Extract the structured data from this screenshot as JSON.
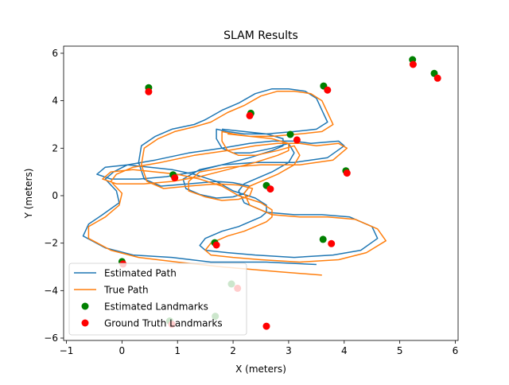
{
  "chart_data": {
    "type": "line",
    "title": "SLAM Results",
    "xlabel": "X (meters)",
    "ylabel": "Y (meters)",
    "xlim": [
      -1.05,
      6.05
    ],
    "ylim": [
      -6.1,
      6.3
    ],
    "xticks": [
      -1,
      0,
      1,
      2,
      3,
      4,
      5,
      6
    ],
    "yticks": [
      -6,
      -4,
      -2,
      0,
      2,
      4,
      6
    ],
    "grid": false,
    "legend_position": "lower-left",
    "series": [
      {
        "name": "Estimated Path",
        "kind": "line",
        "color": "#1f77b4",
        "x": [
          3.5,
          2.6,
          1.6,
          0.9,
          0.2,
          -0.3,
          -0.7,
          -0.6,
          -0.35,
          -0.05,
          -0.1,
          -0.3,
          -0.15,
          0.1,
          0.6,
          1.2,
          1.8,
          2.3,
          2.7,
          3.1,
          3.4,
          3.9,
          4.0,
          3.7,
          3.1,
          2.4,
          1.8,
          1.4,
          1.1,
          1.15,
          1.4,
          1.7,
          2.0,
          2.2,
          2.3,
          2.0,
          1.7,
          1.2,
          0.7,
          0.4,
          0.3,
          0.35,
          0.6,
          0.9,
          1.3,
          1.5,
          1.8,
          2.1,
          2.4,
          2.7,
          3.0,
          3.3,
          3.5,
          3.6,
          3.7,
          3.5,
          3.1,
          2.6,
          2.2,
          1.9,
          1.7,
          1.7,
          1.8,
          2.0,
          2.3,
          2.7,
          3.0,
          3.1,
          3.0,
          2.7,
          2.4,
          2.2,
          2.1,
          2.2,
          2.6,
          3.1,
          3.6,
          4.1,
          4.5,
          4.6,
          4.3,
          3.8,
          3.1,
          2.4,
          1.9,
          1.5,
          1.4,
          1.5,
          1.8,
          2.1,
          2.3,
          2.5,
          2.6,
          2.6,
          2.4,
          2.0,
          1.7,
          1.3,
          0.9,
          0.5,
          0.1,
          -0.3,
          -0.45,
          -0.2,
          0.3,
          0.8,
          1.3,
          1.8,
          2.3,
          2.7,
          2.9,
          2.9,
          2.6,
          2.2,
          1.8
        ],
        "y": [
          -2.9,
          -2.8,
          -2.8,
          -2.6,
          -2.5,
          -2.2,
          -1.7,
          -1.2,
          -0.8,
          -0.3,
          0.2,
          0.7,
          1.0,
          1.3,
          1.5,
          1.8,
          2.0,
          2.2,
          2.3,
          2.3,
          2.2,
          2.3,
          2.1,
          1.6,
          1.4,
          1.4,
          1.3,
          1.1,
          0.7,
          0.3,
          0.05,
          -0.1,
          -0.05,
          0.1,
          0.4,
          0.55,
          0.6,
          0.5,
          0.4,
          0.7,
          1.4,
          2.1,
          2.5,
          2.8,
          3.0,
          3.2,
          3.6,
          3.9,
          4.3,
          4.5,
          4.5,
          4.4,
          4.1,
          3.6,
          3.1,
          2.8,
          2.7,
          2.6,
          2.6,
          2.7,
          2.8,
          2.4,
          2.0,
          1.8,
          1.8,
          2.0,
          2.2,
          1.8,
          1.4,
          1.0,
          0.7,
          0.5,
          0.2,
          -0.3,
          -0.7,
          -0.8,
          -0.8,
          -0.9,
          -1.3,
          -1.8,
          -2.3,
          -2.5,
          -2.6,
          -2.5,
          -2.4,
          -2.3,
          -2.1,
          -1.8,
          -1.5,
          -1.3,
          -1.1,
          -0.9,
          -0.7,
          -0.4,
          -0.1,
          0.2,
          0.6,
          0.9,
          1.1,
          1.2,
          1.3,
          1.2,
          0.9,
          0.7,
          0.7,
          0.8,
          1.0,
          1.3,
          1.6,
          1.9,
          2.1,
          2.4,
          2.6,
          2.7,
          2.8
        ]
      },
      {
        "name": "True Path",
        "kind": "line",
        "color": "#ff7f0e",
        "x": [
          3.6,
          2.8,
          1.8,
          1.0,
          0.3,
          -0.2,
          -0.6,
          -0.6,
          -0.3,
          -0.05,
          0.0,
          -0.2,
          -0.1,
          0.2,
          0.7,
          1.3,
          1.9,
          2.4,
          2.8,
          3.2,
          3.5,
          3.9,
          4.05,
          3.8,
          3.2,
          2.5,
          1.9,
          1.4,
          1.2,
          1.2,
          1.5,
          1.8,
          2.1,
          2.3,
          2.35,
          2.1,
          1.7,
          1.2,
          0.75,
          0.45,
          0.35,
          0.4,
          0.65,
          0.95,
          1.3,
          1.6,
          1.9,
          2.2,
          2.5,
          2.8,
          3.1,
          3.4,
          3.6,
          3.7,
          3.8,
          3.6,
          3.2,
          2.7,
          2.3,
          2.0,
          1.8,
          1.8,
          1.9,
          2.1,
          2.4,
          2.8,
          3.1,
          3.2,
          3.1,
          2.8,
          2.5,
          2.3,
          2.2,
          2.3,
          2.7,
          3.2,
          3.7,
          4.2,
          4.6,
          4.75,
          4.4,
          3.9,
          3.2,
          2.5,
          2.0,
          1.6,
          1.5,
          1.6,
          1.9,
          2.2,
          2.4,
          2.6,
          2.7,
          2.7,
          2.5,
          2.1,
          1.8,
          1.4,
          1.0,
          0.6,
          0.2,
          -0.2,
          -0.35,
          -0.1,
          0.4,
          0.9,
          1.4,
          1.9,
          2.4,
          2.8,
          3.0,
          3.0,
          2.7,
          2.3,
          1.9
        ],
        "y": [
          -3.35,
          -3.2,
          -3.0,
          -2.8,
          -2.6,
          -2.3,
          -1.8,
          -1.3,
          -0.9,
          -0.4,
          0.1,
          0.6,
          0.9,
          1.2,
          1.4,
          1.7,
          1.9,
          2.1,
          2.2,
          2.2,
          2.1,
          2.2,
          2.0,
          1.5,
          1.3,
          1.3,
          1.2,
          1.0,
          0.6,
          0.2,
          -0.05,
          -0.2,
          -0.15,
          0.0,
          0.3,
          0.45,
          0.5,
          0.4,
          0.3,
          0.6,
          1.3,
          2.0,
          2.4,
          2.7,
          2.9,
          3.1,
          3.5,
          3.8,
          4.2,
          4.4,
          4.4,
          4.3,
          4.0,
          3.5,
          3.0,
          2.7,
          2.6,
          2.5,
          2.5,
          2.6,
          2.7,
          2.3,
          1.9,
          1.7,
          1.7,
          1.9,
          2.1,
          1.7,
          1.3,
          0.9,
          0.6,
          0.4,
          0.1,
          -0.4,
          -0.8,
          -0.9,
          -0.9,
          -1.0,
          -1.4,
          -1.9,
          -2.4,
          -2.7,
          -2.8,
          -2.7,
          -2.6,
          -2.5,
          -2.3,
          -2.0,
          -1.7,
          -1.5,
          -1.3,
          -1.1,
          -0.9,
          -0.6,
          -0.3,
          0.0,
          0.4,
          0.7,
          0.9,
          1.0,
          1.1,
          1.0,
          0.7,
          0.5,
          0.5,
          0.6,
          0.8,
          1.1,
          1.4,
          1.7,
          1.9,
          2.2,
          2.4,
          2.5,
          2.6
        ]
      },
      {
        "name": "Estimated Landmarks",
        "kind": "scatter",
        "color": "#008000",
        "x": [
          0.48,
          2.32,
          3.63,
          5.23,
          5.62,
          3.03,
          0.92,
          2.6,
          4.03,
          1.67,
          3.62,
          0.0,
          1.97,
          0.86,
          1.68
        ],
        "y": [
          4.55,
          3.47,
          4.62,
          5.73,
          5.15,
          2.58,
          0.88,
          0.43,
          1.05,
          -1.98,
          -1.84,
          -2.78,
          -3.72,
          -5.28,
          -5.08
        ]
      },
      {
        "name": "Ground Truth Landmarks",
        "kind": "scatter",
        "color": "#ff0000",
        "x": [
          0.48,
          2.3,
          3.7,
          5.24,
          5.68,
          3.15,
          0.95,
          2.67,
          4.05,
          1.7,
          3.77,
          0.02,
          2.08,
          0.9,
          2.6
        ],
        "y": [
          4.38,
          3.37,
          4.45,
          5.53,
          4.95,
          2.35,
          0.75,
          0.28,
          0.95,
          -2.08,
          -2.02,
          -2.88,
          -3.9,
          -5.42,
          -5.5
        ]
      }
    ]
  }
}
